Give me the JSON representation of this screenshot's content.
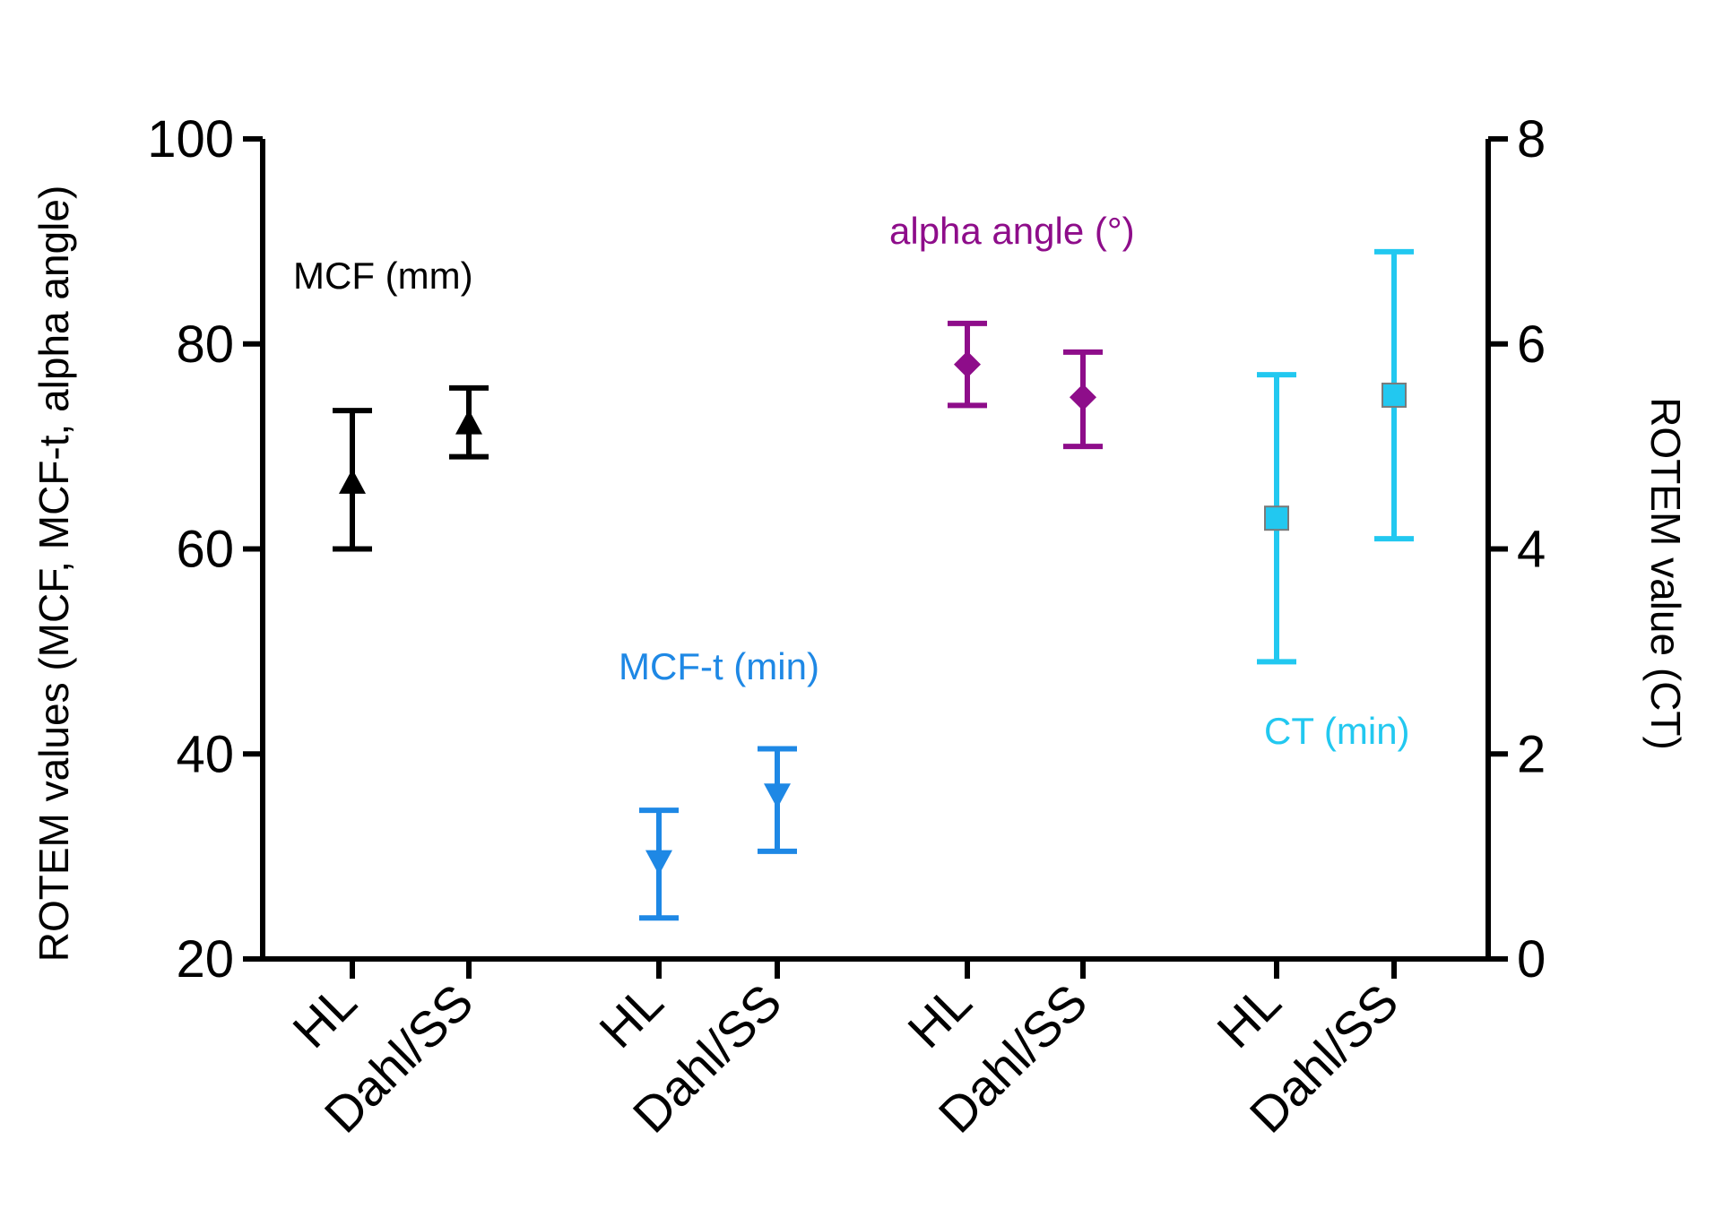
{
  "chart_data": {
    "type": "scatter",
    "title": "",
    "ylabel_left": "ROTEM values (MCF, MCF-t, alpha angle)",
    "ylabel_right": "ROTEM value (CT)",
    "ylim_left": [
      20,
      100
    ],
    "ylim_right": [
      0,
      8
    ],
    "yticks_left": [
      "20",
      "40",
      "60",
      "80",
      "100"
    ],
    "yticks_right": [
      "0",
      "2",
      "4",
      "6",
      "8"
    ],
    "categories": [
      "HL",
      "Dahl/SS",
      "HL",
      "Dahl/SS",
      "HL",
      "Dahl/SS",
      "HL",
      "Dahl/SS"
    ],
    "grid": false,
    "series": [
      {
        "name": "MCF (mm)",
        "axis": "left",
        "marker": "triangle-up",
        "color": "#000000",
        "points": [
          {
            "category_index": 0,
            "mean": 66.5,
            "low": 60.0,
            "high": 73.5
          },
          {
            "category_index": 1,
            "mean": 72.3,
            "low": 69.0,
            "high": 75.7
          }
        ]
      },
      {
        "name": "MCF-t (min)",
        "axis": "left",
        "marker": "triangle-down",
        "color": "#1E88E5",
        "points": [
          {
            "category_index": 2,
            "mean": 29.5,
            "low": 24.0,
            "high": 34.5
          },
          {
            "category_index": 3,
            "mean": 36.0,
            "low": 30.5,
            "high": 40.5
          }
        ]
      },
      {
        "name": "alpha angle (°)",
        "axis": "left",
        "marker": "diamond",
        "color": "#8E0D8A",
        "points": [
          {
            "category_index": 4,
            "mean": 78.0,
            "low": 74.0,
            "high": 82.0
          },
          {
            "category_index": 5,
            "mean": 74.8,
            "low": 70.0,
            "high": 79.2
          }
        ]
      },
      {
        "name": "CT (min)",
        "axis": "right",
        "marker": "square",
        "color": "#22C8F0",
        "points": [
          {
            "category_index": 6,
            "mean": 4.3,
            "low": 2.9,
            "high": 5.7
          },
          {
            "category_index": 7,
            "mean": 5.5,
            "low": 4.1,
            "high": 6.9
          }
        ]
      }
    ]
  }
}
